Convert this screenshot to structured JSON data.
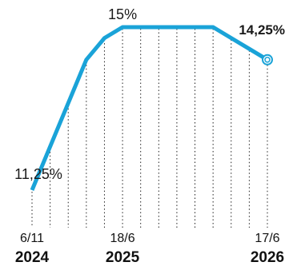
{
  "colors": {
    "line": "#1aa3d8",
    "grid": "#222222",
    "text": "#1a1a1a"
  },
  "chart_data": {
    "type": "line",
    "title": "",
    "xlabel": "",
    "ylabel": "",
    "grid": "vertical dotted lines at each data point",
    "ylim": [
      11,
      15.2
    ],
    "x": [
      "2024-11-06",
      "2024-12-11",
      "2025-01-29",
      "2025-03-19",
      "2025-05-07",
      "2025-06-18",
      "2025-07-30",
      "2025-09-17",
      "2025-11-05",
      "2025-12-10",
      "2026-01-28",
      "2026-03-18",
      "2026-04-29",
      "2026-06-17"
    ],
    "series": [
      {
        "values": [
          11.25,
          12.25,
          13.25,
          14.25,
          14.75,
          15,
          15,
          15,
          15,
          15,
          15,
          14.75,
          14.5,
          14.25
        ]
      }
    ],
    "annotations": [
      {
        "text": "11,25%",
        "x": "2024-11-06",
        "y": 11.25,
        "style": "plain"
      },
      {
        "text": "15%",
        "x": "2025-06-18",
        "y": 15,
        "style": "plain"
      },
      {
        "text": "14,25%",
        "x": "2026-06-17",
        "y": 14.25,
        "style": "accent"
      }
    ],
    "x_ticks": [
      {
        "date": "6/11",
        "year": "2024",
        "x": "2024-11-06"
      },
      {
        "date": "18/6",
        "year": "2025",
        "x": "2025-06-18"
      },
      {
        "date": "17/6",
        "year": "2026",
        "x": "2026-06-17"
      }
    ],
    "end_marker": true
  }
}
